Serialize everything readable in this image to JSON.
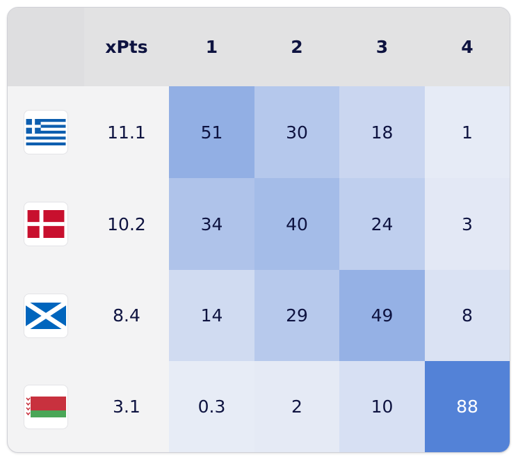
{
  "table": {
    "header": [
      "xPts",
      "1",
      "2",
      "3",
      "4"
    ],
    "rows": [
      {
        "xpts": 11.1,
        "probabilities": [
          51,
          30,
          18,
          1
        ]
      },
      {
        "xpts": 10.2,
        "probabilities": [
          34,
          40,
          24,
          3
        ]
      },
      {
        "xpts": 8.4,
        "probabilities": [
          14,
          29,
          49,
          8
        ]
      },
      {
        "xpts": 3.1,
        "probabilities": [
          0.3,
          2,
          10,
          88
        ]
      }
    ]
  },
  "cell_color_low": "#e8ecf6",
  "cell_color_high": "#3f74d3"
}
